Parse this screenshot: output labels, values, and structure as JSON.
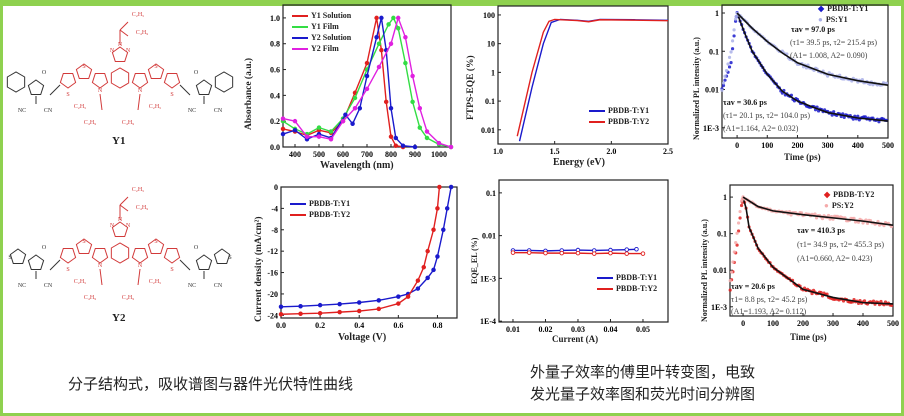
{
  "molecules": [
    {
      "name": "Y1",
      "substituents": [
        "C2H5",
        "C4H9",
        "C2H5",
        "C4H9",
        "C2H5",
        "C4H9"
      ],
      "groups": [
        "NC",
        "CN",
        "NC",
        "CN",
        "O",
        "O",
        "S",
        "S",
        "S",
        "S",
        "N",
        "N",
        "N",
        "N",
        "N"
      ]
    },
    {
      "name": "Y2"
    }
  ],
  "captions": {
    "left": "分子结构式，吸收谱图与器件光伏特性曲线",
    "right_line1": "外量子效率的傅里叶转变图，电致",
    "right_line2": "发光量子效率图和荧光时间分辨图"
  },
  "colors": {
    "red": "#e0201f",
    "green": "#33dd44",
    "blue": "#1a1acc",
    "magenta": "#e020e0",
    "black": "#111111",
    "pink": "#f5aaaa",
    "lightblue": "#aab0e8",
    "frame": "#8fd14f"
  },
  "chart_data": [
    {
      "id": "abs",
      "type": "line",
      "xlabel": "Wavelength (nm)",
      "ylabel": "Absorbance (a.u.)",
      "log": false,
      "xlim": [
        350,
        1050
      ],
      "ylim": [
        0,
        1.1
      ],
      "xticks": [
        400,
        500,
        600,
        700,
        800,
        900,
        1000
      ],
      "yticks": [
        0.0,
        0.2,
        0.4,
        0.6,
        0.8,
        1.0
      ],
      "ytick_labels": [
        "0.0",
        "0.2",
        "0.4",
        "0.6",
        "0.8",
        "1.0"
      ],
      "series": [
        {
          "name": "Y1 Solution",
          "color": "red",
          "x": [
            350,
            400,
            450,
            500,
            550,
            600,
            650,
            700,
            740,
            760,
            780,
            800,
            820,
            850
          ],
          "y": [
            0.14,
            0.12,
            0.09,
            0.13,
            0.11,
            0.2,
            0.42,
            0.65,
            1.0,
            0.75,
            0.35,
            0.08,
            0.01,
            0
          ]
        },
        {
          "name": "Y1 Film",
          "color": "green",
          "x": [
            350,
            400,
            450,
            500,
            550,
            600,
            650,
            700,
            750,
            790,
            810,
            830,
            860,
            890,
            920,
            950,
            1000,
            1050
          ],
          "y": [
            0.2,
            0.14,
            0.1,
            0.15,
            0.12,
            0.22,
            0.38,
            0.6,
            0.8,
            0.95,
            1.0,
            0.92,
            0.65,
            0.35,
            0.15,
            0.07,
            0.02,
            0
          ]
        },
        {
          "name": "Y2 Solution",
          "color": "blue",
          "x": [
            350,
            400,
            450,
            500,
            550,
            610,
            640,
            670,
            700,
            740,
            760,
            780,
            800,
            820,
            850,
            900
          ],
          "y": [
            0.1,
            0.13,
            0.06,
            0.1,
            0.07,
            0.25,
            0.18,
            0.3,
            0.55,
            0.85,
            1.0,
            0.75,
            0.3,
            0.07,
            0.01,
            0
          ]
        },
        {
          "name": "Y2 Film",
          "color": "magenta",
          "x": [
            350,
            400,
            450,
            500,
            550,
            600,
            650,
            700,
            750,
            800,
            830,
            860,
            890,
            920,
            950,
            1000,
            1050
          ],
          "y": [
            0.22,
            0.2,
            0.08,
            0.08,
            0.06,
            0.2,
            0.3,
            0.45,
            0.62,
            0.8,
            1.0,
            0.85,
            0.55,
            0.3,
            0.12,
            0.03,
            0
          ]
        }
      ]
    },
    {
      "id": "ftps",
      "type": "line",
      "xlabel": "Energy (eV)",
      "ylabel": "FTPS-EQE (%)",
      "log": true,
      "xlim": [
        1.0,
        2.5
      ],
      "ylim": [
        0.0032,
        205
      ],
      "xticks": [
        1.0,
        1.5,
        2.0,
        2.5
      ],
      "xtick_labels": [
        "1.0",
        "1.5",
        "2.0",
        "2.5"
      ],
      "yticks": [
        0.01,
        0.1,
        1,
        10,
        100
      ],
      "ytick_labels": [
        "0.01",
        "0.1",
        "1",
        "10",
        "100"
      ],
      "series": [
        {
          "name": "PBDB-T:Y1",
          "color": "blue",
          "x": [
            1.19,
            1.3,
            1.4,
            1.47,
            1.55,
            1.7,
            1.8,
            1.9,
            2.2,
            2.5
          ],
          "y": [
            0.004,
            0.3,
            10,
            55,
            70,
            65,
            60,
            70,
            68,
            65
          ]
        },
        {
          "name": "PBDB-T:Y2",
          "color": "red",
          "x": [
            1.17,
            1.3,
            1.4,
            1.45,
            1.5,
            1.7,
            1.8,
            1.9,
            2.2,
            2.5
          ],
          "y": [
            0.006,
            1,
            25,
            60,
            70,
            64,
            58,
            68,
            66,
            63
          ]
        }
      ]
    },
    {
      "id": "pl1",
      "type": "scatter",
      "xlabel": "Time (ps)",
      "ylabel": "Normalized PL intensity (a.u.)",
      "log": true,
      "xlim": [
        -50,
        500
      ],
      "ylim": [
        0.00054,
        1.62
      ],
      "xticks": [
        0,
        100,
        200,
        300,
        400,
        500
      ],
      "yticks": [
        0.001,
        0.01,
        0.1,
        1
      ],
      "ytick_labels": [
        "1E-3",
        "0.01",
        "0.1",
        "1"
      ],
      "annotations": [
        "τav = 97.0 ps",
        "(τ1= 39.5 ps, τ2= 215.4 ps)",
        "(A1= 1.008, A2= 0.090)",
        "τav = 30.6 ps",
        "(τ1= 20.1 ps, τ2= 104.0 ps)",
        "(A1=1.164, A2= 0.032)"
      ],
      "series": [
        {
          "name": "PBDB-T:Y1",
          "color": "blue",
          "x": [
            -50,
            -20,
            -5,
            0,
            25,
            50,
            100,
            150,
            200,
            250,
            300,
            400,
            500
          ],
          "y": [
            0.01,
            0.05,
            0.6,
            1,
            0.3,
            0.1,
            0.025,
            0.009,
            0.005,
            0.0035,
            0.0025,
            0.0018,
            0.0015
          ]
        },
        {
          "name": "PS:Y1",
          "color": "lightblue",
          "x": [
            -50,
            -20,
            -5,
            0,
            50,
            100,
            150,
            200,
            300,
            400,
            500
          ],
          "y": [
            0.01,
            0.1,
            0.7,
            1,
            0.4,
            0.18,
            0.09,
            0.05,
            0.025,
            0.017,
            0.013
          ]
        }
      ]
    },
    {
      "id": "jv",
      "type": "line",
      "xlabel": "Voltage (V)",
      "ylabel": "Current density (mA/cm²)",
      "log": false,
      "xlim": [
        0,
        0.9
      ],
      "ylim": [
        -24.5,
        0
      ],
      "xticks": [
        0,
        0.2,
        0.4,
        0.6,
        0.8
      ],
      "xtick_labels": [
        "0.0",
        "0.2",
        "0.4",
        "0.6",
        "0.8"
      ],
      "yticks": [
        0,
        -4,
        -8,
        -12,
        -16,
        -20,
        -24
      ],
      "ytick_labels": [
        "0",
        "-4",
        "-8",
        "-12",
        "-16",
        "-20",
        "-24"
      ],
      "series": [
        {
          "name": "PBDB-T:Y1",
          "color": "blue",
          "x": [
            0,
            0.1,
            0.2,
            0.3,
            0.4,
            0.5,
            0.6,
            0.65,
            0.7,
            0.75,
            0.78,
            0.8,
            0.83,
            0.85,
            0.87
          ],
          "y": [
            -22.4,
            -22.3,
            -22.1,
            -21.9,
            -21.6,
            -21.2,
            -20.5,
            -20,
            -19,
            -17,
            -15.5,
            -13,
            -8,
            -4,
            0
          ]
        },
        {
          "name": "PBDB-T:Y2",
          "color": "red",
          "x": [
            0,
            0.1,
            0.2,
            0.3,
            0.4,
            0.5,
            0.6,
            0.65,
            0.7,
            0.73,
            0.75,
            0.78,
            0.8,
            0.81
          ],
          "y": [
            -23.8,
            -23.7,
            -23.6,
            -23.4,
            -23.2,
            -22.8,
            -21.8,
            -20.5,
            -17.5,
            -15,
            -12,
            -8,
            -4,
            0
          ]
        }
      ]
    },
    {
      "id": "eqe",
      "type": "scatter",
      "xlabel": "Current (A)",
      "ylabel": "EQE_EL (%)",
      "log": true,
      "xlim": [
        0.0057,
        0.0577
      ],
      "ylim": [
        9.55e-05,
        0.2
      ],
      "xticks": [
        0.01,
        0.02,
        0.03,
        0.04,
        0.05
      ],
      "xtick_labels": [
        "0.01",
        "0.02",
        "0.03",
        "0.04",
        "0.05"
      ],
      "yticks": [
        0.0001,
        0.001,
        0.01,
        0.1
      ],
      "ytick_labels": [
        "1E-4",
        "1E-3",
        "0.01",
        "0.1"
      ],
      "series": [
        {
          "name": "PBDB-T:Y1",
          "color": "blue",
          "x": [
            0.01,
            0.015,
            0.02,
            0.025,
            0.03,
            0.035,
            0.04,
            0.045,
            0.048
          ],
          "y": [
            0.0045,
            0.0045,
            0.0044,
            0.0045,
            0.0046,
            0.0045,
            0.0046,
            0.0047,
            0.0048
          ]
        },
        {
          "name": "PBDB-T:Y2",
          "color": "red",
          "x": [
            0.01,
            0.015,
            0.02,
            0.025,
            0.03,
            0.035,
            0.04,
            0.045,
            0.05
          ],
          "y": [
            0.004,
            0.004,
            0.0039,
            0.0039,
            0.0039,
            0.0038,
            0.0039,
            0.0038,
            0.0038
          ]
        }
      ]
    },
    {
      "id": "pl2",
      "type": "scatter",
      "xlabel": "Time (ps)",
      "ylabel": "Normalized PL intensity (a.u.)",
      "log": true,
      "xlim": [
        -43.6,
        500
      ],
      "ylim": [
        0.00056,
        2.14
      ],
      "xticks": [
        0,
        100,
        200,
        300,
        400,
        500
      ],
      "yticks": [
        0.001,
        0.01,
        0.1,
        1
      ],
      "ytick_labels": [
        "1E-3",
        "0.01",
        "0.1",
        "1"
      ],
      "annotations": [
        "τav = 410.3 ps",
        "(τ1= 34.9 ps, τ2= 455.3 ps)",
        "(A1=0.660, A2= 0.423)",
        "τav = 20.6 ps",
        "τ1= 8.8 ps, τ2= 45.2 ps)",
        "(A1=1.193, A2= 0.112)"
      ],
      "series": [
        {
          "name": "PBDB-T:Y2",
          "color": "red",
          "x": [
            -43,
            -20,
            -5,
            0,
            10,
            20,
            50,
            100,
            150,
            200,
            300,
            400,
            500
          ],
          "y": [
            0.003,
            0.05,
            0.6,
            0.95,
            0.5,
            0.15,
            0.04,
            0.012,
            0.006,
            0.003,
            0.0018,
            0.0013,
            0.0012
          ]
        },
        {
          "name": "PS:Y2",
          "color": "pink",
          "x": [
            -43,
            -20,
            -5,
            0,
            50,
            100,
            200,
            300,
            400,
            500
          ],
          "y": [
            0.005,
            0.1,
            0.8,
            1,
            0.55,
            0.42,
            0.33,
            0.27,
            0.22,
            0.17
          ]
        }
      ]
    }
  ]
}
